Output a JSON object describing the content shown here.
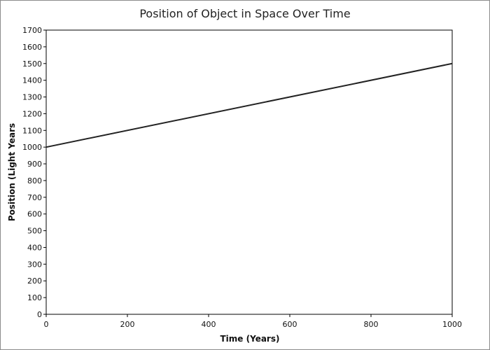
{
  "chart_data": {
    "type": "line",
    "title": "Position of Object in Space Over Time",
    "xlabel": "Time (Years)",
    "ylabel": "Position (Light Years",
    "xlim": [
      0,
      1000
    ],
    "ylim": [
      0,
      1700
    ],
    "x_ticks": [
      0,
      200,
      400,
      600,
      800,
      1000
    ],
    "y_ticks": [
      0,
      100,
      200,
      300,
      400,
      500,
      600,
      700,
      800,
      900,
      1000,
      1100,
      1200,
      1300,
      1400,
      1500,
      1600,
      1700
    ],
    "grid": false,
    "legend": "none",
    "series": [
      {
        "color": "#222222",
        "x": [
          0,
          1000
        ],
        "y": [
          1000,
          1500
        ]
      }
    ]
  }
}
